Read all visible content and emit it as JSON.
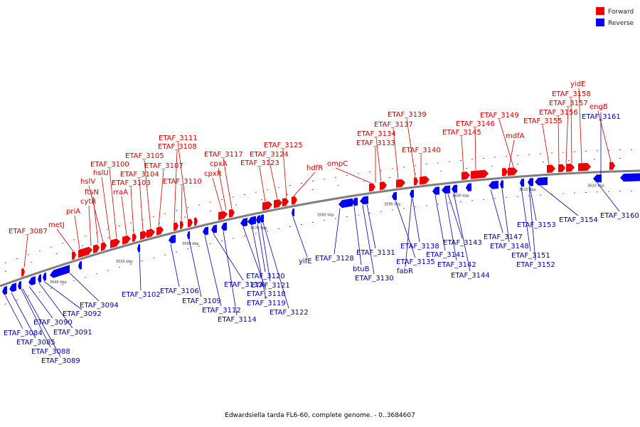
{
  "caption": "Edwardsiella tarda FL6-60, complete genome. - 0..3684607",
  "legend": [
    {
      "label": "Forward",
      "color": "#ee0000"
    },
    {
      "label": "Reverse",
      "color": "#0000ee"
    }
  ],
  "colors": {
    "forward": "#ee0000",
    "reverse": "#0000ee",
    "backbone": "#808080"
  },
  "scale_labels": [
    "3540 kbp",
    "3550 kbp",
    "3560 kbp",
    "3570 kbp",
    "3580 kbp",
    "3590 kbp",
    "3600 kbp",
    "3610 kbp",
    "3620 kbp"
  ],
  "forward_labels": [
    "ETAF_3087",
    "metJ",
    "priA",
    "cytR",
    "ftsN",
    "hslV",
    "hslU",
    "ETAF_3100",
    "rraA",
    "ETAF_3103",
    "ETAF_3104",
    "ETAF_3105",
    "ETAF_3107",
    "ETAF_3108",
    "ETAF_3110",
    "ETAF_3111",
    "cpxR",
    "cpxA",
    "ETAF_3117",
    "ETAF_3123",
    "ETAF_3124",
    "ETAF_3125",
    "hdfR",
    "ompC",
    "ETAF_3133",
    "ETAF_3134",
    "ETAF_3137",
    "ETAF_3139",
    "ETAF_3140",
    "ETAF_3145",
    "ETAF_3146",
    "mdfA",
    "ETAF_3149",
    "ETAF_3155",
    "ETAF_3156",
    "ETAF_3157",
    "ETAF_3158",
    "yidE",
    "engB"
  ],
  "reverse_labels": [
    "ETAF_3084",
    "ETAF_3085",
    "ETAF_3088",
    "ETAF_3089",
    "ETAF_3090",
    "ETAF_3091",
    "ETAF_3092",
    "ETAF_3094",
    "ETAF_3102",
    "ETAF_3106",
    "ETAF_3109",
    "ETAF_3112",
    "ETAF_3113",
    "ETAF_3114",
    "ETAF_3118",
    "ETAF_3119",
    "ETAF_3120",
    "ETAF_3121",
    "ETAF_3122",
    "yifE",
    "ETAF_3128",
    "btuB",
    "ETAF_3130",
    "ETAF_3131",
    "ETAF_3135",
    "fabR",
    "ETAF_3138",
    "ETAF_3141",
    "ETAF_3142",
    "ETAF_3143",
    "ETAF_3144",
    "ETAF_3147",
    "ETAF_3148",
    "ETAF_3151",
    "ETAF_3152",
    "ETAF_3153",
    "ETAF_3154",
    "ETAF_3160",
    "ETAF_3161"
  ]
}
